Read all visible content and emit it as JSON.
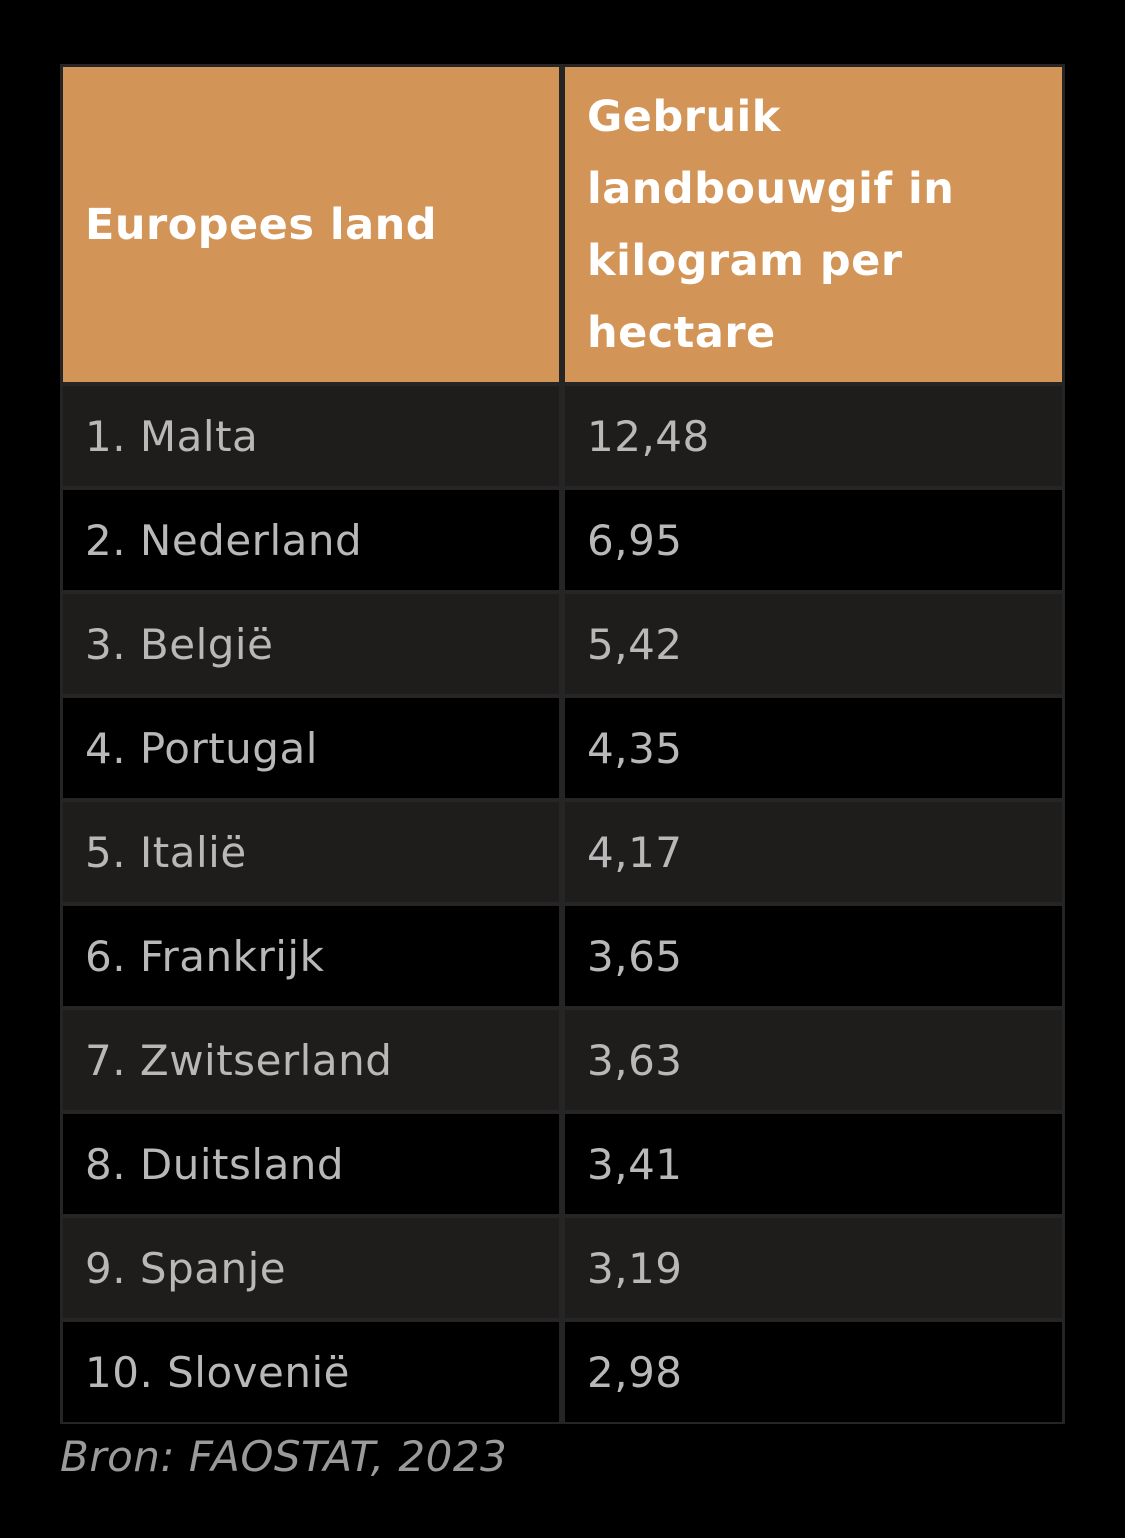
{
  "chart_data": {
    "type": "table",
    "columns": [
      "Europees land",
      "Gebruik landbouwgif in kilogram per hectare"
    ],
    "rows": [
      [
        "1. Malta",
        "12,48"
      ],
      [
        "2. Nederland",
        "6,95"
      ],
      [
        "3. België",
        "5,42"
      ],
      [
        "4. Portugal",
        "4,35"
      ],
      [
        "5. Italië",
        "4,17"
      ],
      [
        "6. Frankrijk",
        "3,65"
      ],
      [
        "7. Zwitserland",
        "3,63"
      ],
      [
        "8. Duitsland",
        "3,41"
      ],
      [
        "9. Spanje",
        "3,19"
      ],
      [
        "10. Slovenië",
        "2,98"
      ]
    ]
  },
  "source": "Bron: FAOSTAT, 2023",
  "colors": {
    "header_bg": "#d39457",
    "header_text": "#ffffff",
    "row_odd_bg": "#1f1c1c",
    "row_even_bg": "#000000",
    "cell_text": "#b8b8b8"
  }
}
